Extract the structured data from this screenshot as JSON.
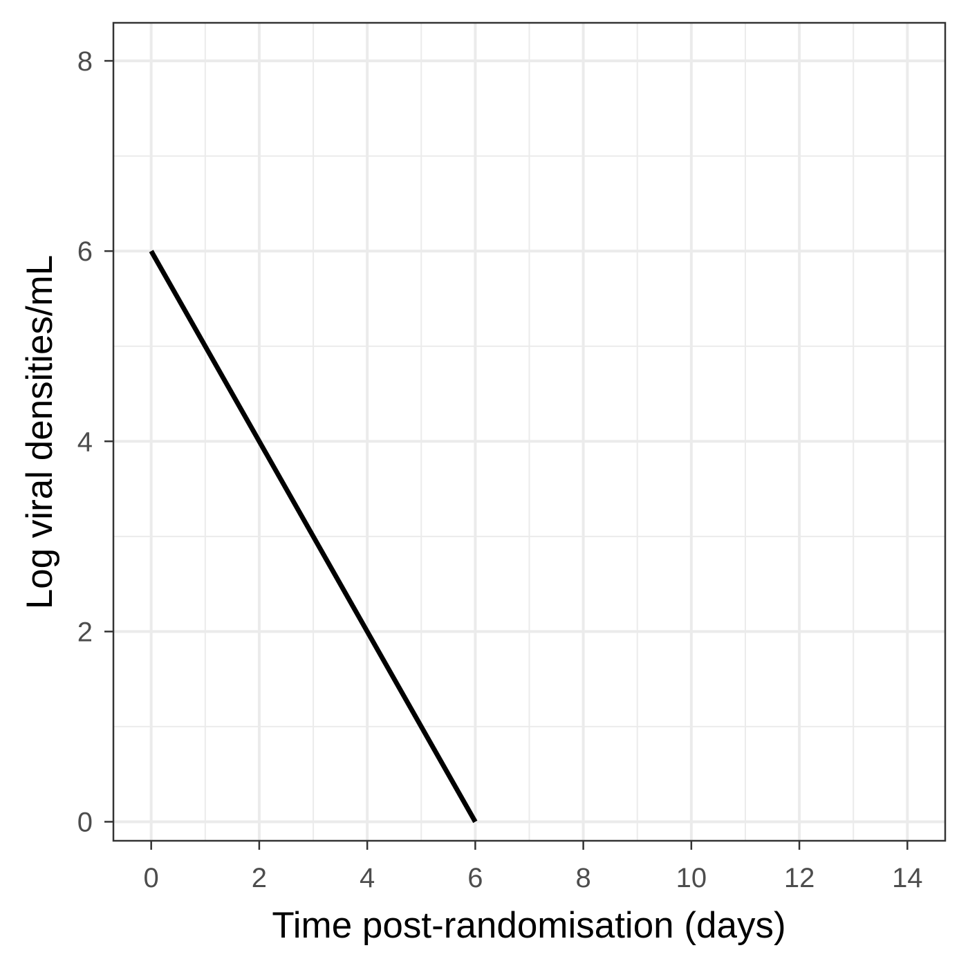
{
  "chart_data": {
    "type": "line",
    "title": "",
    "xlabel": "Time post-randomisation (days)",
    "ylabel": "Log viral densities/mL",
    "xlim": [
      -0.7,
      14.7
    ],
    "ylim": [
      -0.2,
      8.4
    ],
    "x_ticks": [
      0,
      2,
      4,
      6,
      8,
      10,
      12,
      14
    ],
    "y_ticks": [
      0,
      2,
      4,
      6,
      8
    ],
    "x_minor_ticks": [
      1,
      3,
      5,
      7,
      9,
      11,
      13
    ],
    "y_minor_ticks": [
      1,
      3,
      5,
      7
    ],
    "grid": true,
    "legend": "none",
    "series": [
      {
        "x": [
          0,
          6
        ],
        "values": [
          6,
          0
        ],
        "color": "#000000"
      }
    ]
  }
}
